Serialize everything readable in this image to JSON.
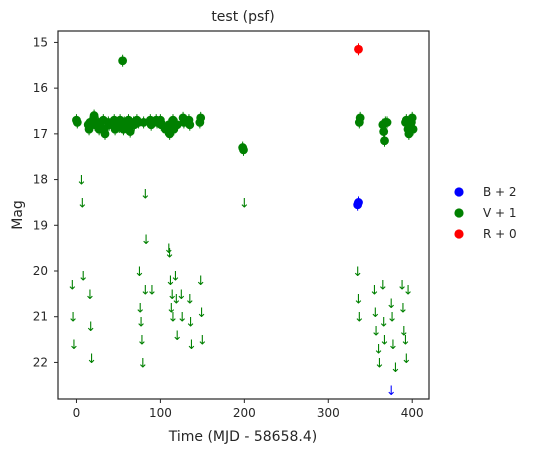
{
  "chart_data": {
    "type": "scatter",
    "title": "test (psf)",
    "xlabel": "Time (MJD - 58658.4)",
    "ylabel": "Mag",
    "xlim": [
      -22,
      420
    ],
    "ylim": [
      22.8,
      14.75
    ],
    "y_inverted": true,
    "xticks": [
      "0",
      "100",
      "200",
      "300",
      "400"
    ],
    "xtick_values": [
      0,
      100,
      200,
      300,
      400
    ],
    "yticks": [
      "15",
      "16",
      "17",
      "18",
      "19",
      "20",
      "21",
      "22"
    ],
    "ytick_values": [
      15,
      16,
      17,
      18,
      19,
      20,
      21,
      22
    ],
    "grid": false,
    "legend_position": "right-outside",
    "upper_limit_glyph": "↓",
    "series": [
      {
        "name": "B + 2",
        "color": "#0000ff",
        "detections": [
          [
            335,
            18.55
          ],
          [
            336,
            18.5
          ]
        ],
        "upper_limits": [
          [
            375,
            22.6
          ]
        ]
      },
      {
        "name": "V + 1",
        "color": "#008000",
        "detections": [
          [
            0,
            16.7
          ],
          [
            1,
            16.75
          ],
          [
            14,
            16.8
          ],
          [
            15,
            16.9
          ],
          [
            16,
            16.75
          ],
          [
            20,
            16.7
          ],
          [
            21,
            16.6
          ],
          [
            22,
            16.8
          ],
          [
            26,
            16.75
          ],
          [
            27,
            16.9
          ],
          [
            28,
            16.8
          ],
          [
            32,
            16.7
          ],
          [
            33,
            16.9
          ],
          [
            34,
            17.0
          ],
          [
            38,
            16.75
          ],
          [
            39,
            16.8
          ],
          [
            44,
            16.8
          ],
          [
            45,
            16.7
          ],
          [
            46,
            16.9
          ],
          [
            50,
            16.8
          ],
          [
            51,
            16.85
          ],
          [
            52,
            16.7
          ],
          [
            55,
            15.4
          ],
          [
            56,
            16.9
          ],
          [
            57,
            16.75
          ],
          [
            58,
            16.8
          ],
          [
            62,
            16.7
          ],
          [
            63,
            16.85
          ],
          [
            64,
            16.95
          ],
          [
            68,
            16.75
          ],
          [
            69,
            16.8
          ],
          [
            72,
            16.7
          ],
          [
            74,
            16.75
          ],
          [
            80,
            16.75
          ],
          [
            88,
            16.7
          ],
          [
            89,
            16.8
          ],
          [
            95,
            16.7
          ],
          [
            96,
            16.75
          ],
          [
            100,
            16.7
          ],
          [
            101,
            16.8
          ],
          [
            105,
            16.85
          ],
          [
            106,
            16.9
          ],
          [
            110,
            16.8
          ],
          [
            111,
            17.0
          ],
          [
            115,
            16.7
          ],
          [
            116,
            16.9
          ],
          [
            120,
            16.8
          ],
          [
            127,
            16.65
          ],
          [
            128,
            16.75
          ],
          [
            134,
            16.7
          ],
          [
            135,
            16.8
          ],
          [
            147,
            16.75
          ],
          [
            148,
            16.65
          ],
          [
            198,
            17.3
          ],
          [
            199,
            17.35
          ],
          [
            337,
            16.75
          ],
          [
            338,
            16.65
          ],
          [
            365,
            16.8
          ],
          [
            366,
            16.95
          ],
          [
            367,
            17.15
          ],
          [
            368,
            16.75
          ],
          [
            370,
            16.75
          ],
          [
            392,
            16.75
          ],
          [
            393,
            16.7
          ],
          [
            395,
            16.9
          ],
          [
            396,
            17.0
          ],
          [
            398,
            16.8
          ],
          [
            399,
            16.75
          ],
          [
            400,
            16.65
          ],
          [
            401,
            16.9
          ]
        ],
        "upper_limits": [
          [
            -5,
            20.3
          ],
          [
            -4,
            21.0
          ],
          [
            -3,
            21.6
          ],
          [
            6,
            18.0
          ],
          [
            7,
            18.5
          ],
          [
            8,
            20.1
          ],
          [
            16,
            20.5
          ],
          [
            17,
            21.2
          ],
          [
            18,
            21.9
          ],
          [
            82,
            18.3
          ],
          [
            83,
            19.3
          ],
          [
            75,
            20.0
          ],
          [
            76,
            20.8
          ],
          [
            77,
            21.1
          ],
          [
            78,
            21.5
          ],
          [
            79,
            22.0
          ],
          [
            82,
            20.4
          ],
          [
            90,
            20.4
          ],
          [
            110,
            19.5
          ],
          [
            111,
            19.6
          ],
          [
            112,
            20.2
          ],
          [
            113,
            20.8
          ],
          [
            114,
            20.5
          ],
          [
            115,
            21.0
          ],
          [
            118,
            20.1
          ],
          [
            119,
            20.6
          ],
          [
            120,
            21.4
          ],
          [
            125,
            20.5
          ],
          [
            126,
            21.0
          ],
          [
            135,
            20.6
          ],
          [
            136,
            21.1
          ],
          [
            137,
            21.6
          ],
          [
            148,
            20.2
          ],
          [
            149,
            20.9
          ],
          [
            150,
            21.5
          ],
          [
            200,
            18.5
          ],
          [
            335,
            20.0
          ],
          [
            336,
            20.6
          ],
          [
            337,
            21.0
          ],
          [
            355,
            20.4
          ],
          [
            356,
            20.9
          ],
          [
            357,
            21.3
          ],
          [
            360,
            21.7
          ],
          [
            361,
            22.0
          ],
          [
            365,
            20.3
          ],
          [
            366,
            21.1
          ],
          [
            367,
            21.5
          ],
          [
            375,
            20.7
          ],
          [
            376,
            21.0
          ],
          [
            377,
            21.6
          ],
          [
            380,
            22.1
          ],
          [
            388,
            20.3
          ],
          [
            389,
            20.8
          ],
          [
            390,
            21.3
          ],
          [
            392,
            21.5
          ],
          [
            393,
            21.9
          ],
          [
            395,
            20.4
          ]
        ]
      },
      {
        "name": "R + 0",
        "color": "#ff0000",
        "detections": [
          [
            336,
            15.15
          ]
        ],
        "upper_limits": []
      }
    ]
  }
}
